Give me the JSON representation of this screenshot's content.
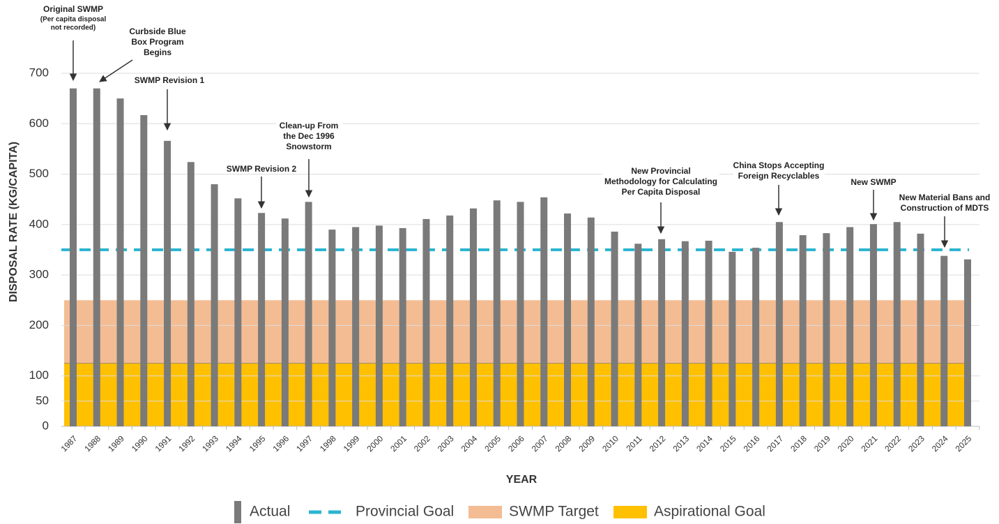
{
  "chart_data": {
    "type": "bar",
    "x_label": "YEAR",
    "y_label": "DISPOSAL RATE (KG/CAPITA)",
    "categories": [
      "1987",
      "1988",
      "1989",
      "1990",
      "1991",
      "1992",
      "1993",
      "1994",
      "1995",
      "1996",
      "1997",
      "1998",
      "1999",
      "2000",
      "2001",
      "2002",
      "2003",
      "2004",
      "2005",
      "2006",
      "2007",
      "2008",
      "2009",
      "2010",
      "2011",
      "2012",
      "2013",
      "2014",
      "2015",
      "2016",
      "2017",
      "2018",
      "2019",
      "2020",
      "2021",
      "2022",
      "2023",
      "2024",
      "2025"
    ],
    "series": [
      {
        "name": "Actual",
        "color": "#7a7a7a",
        "values": [
          670,
          670,
          650,
          617,
          566,
          524,
          480,
          452,
          423,
          412,
          445,
          390,
          395,
          398,
          393,
          411,
          418,
          432,
          448,
          445,
          454,
          422,
          414,
          386,
          362,
          371,
          367,
          368,
          346,
          354,
          405,
          379,
          383,
          395,
          401,
          405,
          382,
          338,
          331
        ]
      },
      {
        "name": "Provincial Goal",
        "color": "#2bb5d0",
        "value": 350
      },
      {
        "name": "SWMP Target",
        "color": "#f4bc93",
        "value": 250
      },
      {
        "name": "Aspirational Goal",
        "color": "#ffc000",
        "value": 125
      }
    ],
    "ylim": [
      0,
      700
    ],
    "yticks": [
      0,
      50,
      100,
      200,
      300,
      400,
      500,
      600,
      700
    ],
    "grid": true,
    "annotations": [
      {
        "x": "1987",
        "lines": [
          "Original SWMP",
          "(Per capita disposal",
          "not recorded)"
        ]
      },
      {
        "x": "1988",
        "lines": [
          "Curbside Blue",
          "Box Program",
          "Begins"
        ]
      },
      {
        "x": "1991",
        "lines": [
          "SWMP Revision 1"
        ]
      },
      {
        "x": "1997",
        "lines": [
          "Clean-up From",
          "the Dec 1996",
          "Snowstorm"
        ]
      },
      {
        "x": "1995",
        "lines": [
          "SWMP Revision 2"
        ]
      },
      {
        "x": "2012",
        "lines": [
          "New Provincial",
          "Methodology for Calculating",
          "Per Capita Disposal"
        ]
      },
      {
        "x": "2017",
        "lines": [
          "China Stops Accepting",
          "Foreign Recyclables"
        ]
      },
      {
        "x": "2021",
        "lines": [
          "New SWMP"
        ]
      },
      {
        "x": "2024",
        "lines": [
          "New Material Bans and",
          "Construction of MDTS"
        ]
      }
    ]
  }
}
